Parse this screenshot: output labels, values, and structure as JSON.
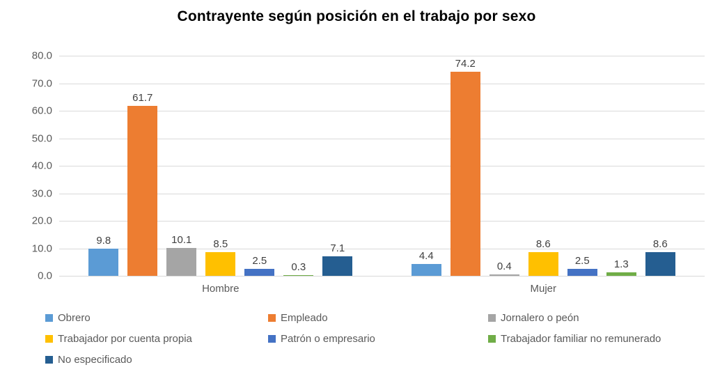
{
  "chart_data": {
    "type": "bar",
    "title": "Contrayente según posición en el trabajo por sexo",
    "categories": [
      "Hombre",
      "Mujer"
    ],
    "series": [
      {
        "name": "Obrero",
        "color": "#5B9BD5",
        "values": [
          9.8,
          4.4
        ]
      },
      {
        "name": "Empleado",
        "color": "#ED7D31",
        "values": [
          61.7,
          74.2
        ]
      },
      {
        "name": "Jornalero o peón",
        "color": "#A5A5A5",
        "values": [
          10.1,
          0.4
        ]
      },
      {
        "name": "Trabajador por cuenta propia",
        "color": "#FFC000",
        "values": [
          8.5,
          8.6
        ]
      },
      {
        "name": "Patrón o empresario",
        "color": "#4472C4",
        "values": [
          2.5,
          2.5
        ]
      },
      {
        "name": "Trabajador familiar no remunerado",
        "color": "#70AD47",
        "values": [
          0.3,
          1.3
        ]
      },
      {
        "name": "No especificado",
        "color": "#255E91",
        "values": [
          7.1,
          8.6
        ]
      }
    ],
    "ylabel": "",
    "xlabel": "",
    "ylim": [
      0,
      80
    ],
    "ytick_step": 10,
    "ytick_labels": [
      "0.0",
      "10.0",
      "20.0",
      "30.0",
      "40.0",
      "50.0",
      "60.0",
      "70.0",
      "80.0"
    ],
    "grid": true,
    "data_labels": true,
    "legend_position": "bottom",
    "colors": {
      "gridline": "#D9D9D9",
      "axis_text": "#595959",
      "data_label_text": "#404040",
      "title_text": "#000000"
    }
  }
}
